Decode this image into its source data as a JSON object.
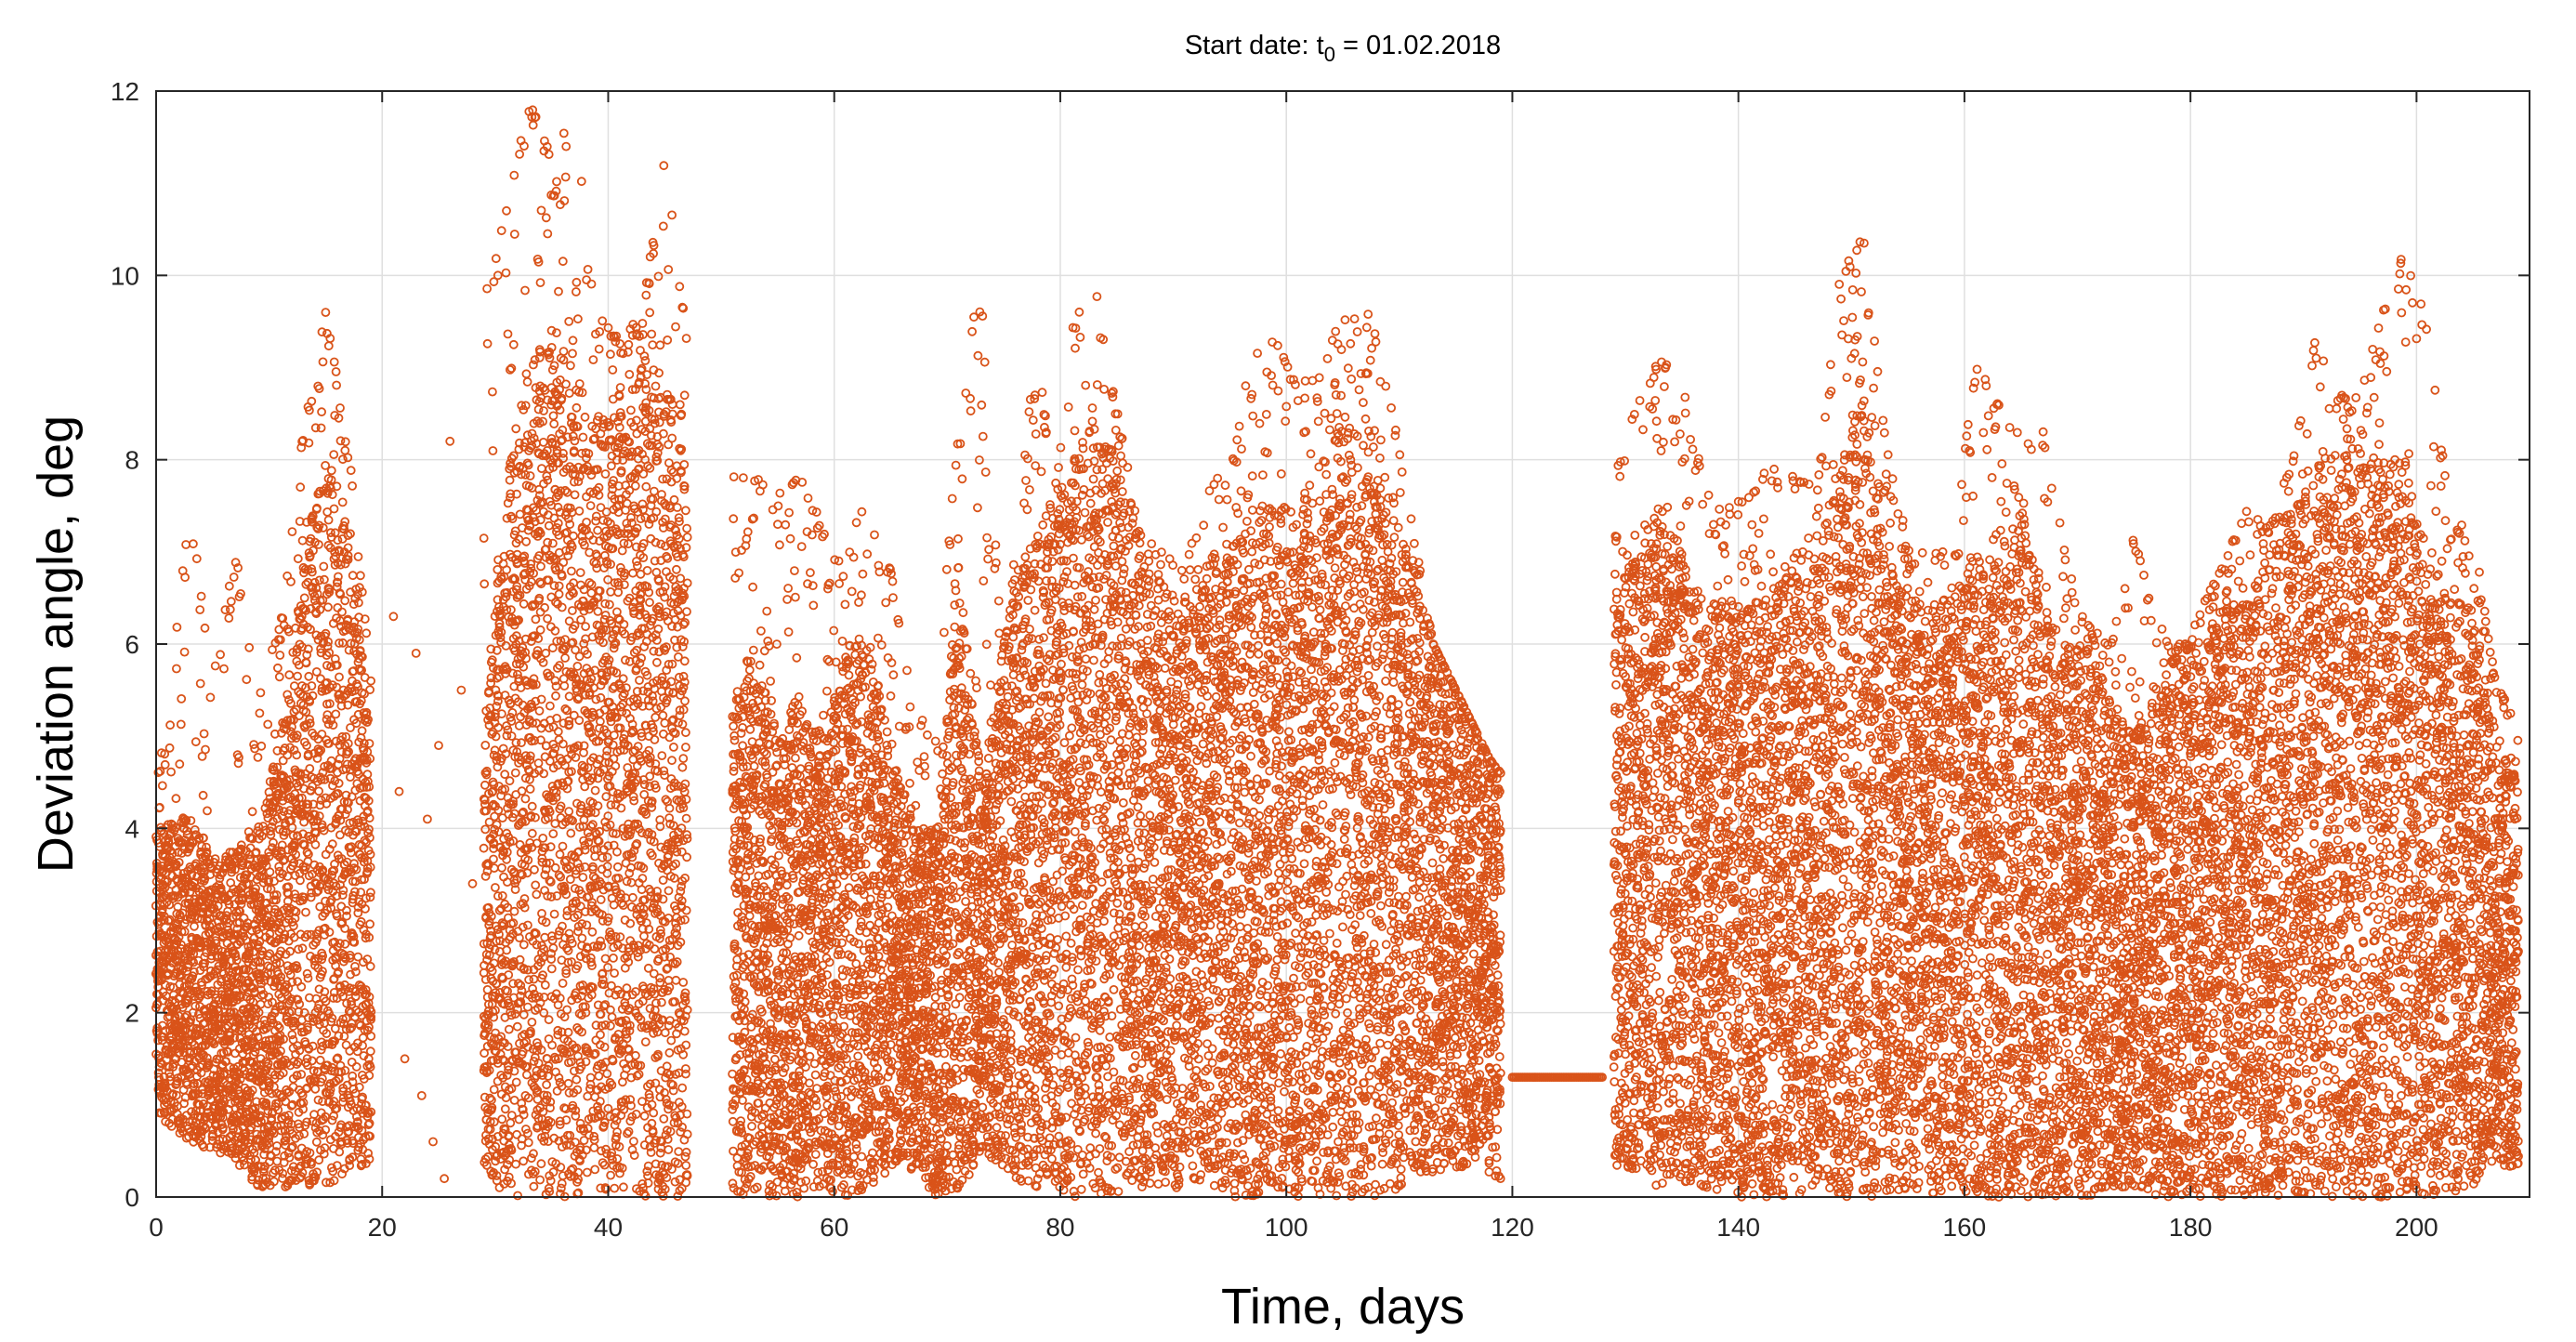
{
  "chart_data": {
    "type": "scatter",
    "title": {
      "prefix": "Start date: t",
      "subscript": "0",
      "suffix": " = 01.02.2018"
    },
    "xlabel": "Time, days",
    "ylabel": "Deviation angle, deg",
    "xlim": [
      0,
      210
    ],
    "ylim": [
      0,
      12
    ],
    "xticks": [
      0,
      20,
      40,
      60,
      80,
      100,
      120,
      140,
      160,
      180,
      200
    ],
    "yticks": [
      0,
      2,
      4,
      6,
      8,
      10,
      12
    ],
    "grid": true,
    "marker": "open-circle",
    "series": [
      {
        "color": "#d95319",
        "envelope": {
          "x": [
            0,
            3,
            5,
            7,
            9,
            11,
            13,
            15,
            17,
            19,
            29,
            31,
            33,
            35,
            37,
            39,
            41,
            43,
            45,
            47,
            51,
            53,
            55,
            57,
            59,
            61,
            63,
            65,
            67,
            69,
            71,
            73,
            75,
            77,
            79,
            81,
            83,
            85,
            87,
            89,
            91,
            93,
            95,
            97,
            99,
            101,
            103,
            105,
            107,
            109,
            111,
            113,
            115,
            117,
            119,
            129,
            131,
            133,
            135,
            137,
            139,
            141,
            143,
            145,
            147,
            149,
            151,
            153,
            155,
            157,
            159,
            161,
            163,
            165,
            167,
            169,
            171,
            173,
            175,
            177,
            179,
            181,
            183,
            185,
            187,
            189,
            191,
            193,
            195,
            197,
            199,
            201,
            203,
            205,
            207,
            209
          ],
          "typical_upper": [
            4.0,
            4.2,
            3.7,
            3.8,
            4.0,
            5.0,
            7.0,
            8.0,
            7.5,
            5.0,
            5.0,
            8.0,
            9.0,
            9.5,
            9.0,
            8.5,
            8.5,
            9.0,
            9.0,
            8.0,
            5.5,
            6.0,
            5.0,
            5.5,
            5.0,
            6.0,
            6.0,
            5.0,
            4.0,
            4.0,
            7.0,
            4.5,
            6.0,
            7.0,
            7.5,
            8.0,
            8.5,
            8.0,
            7.0,
            6.5,
            6.5,
            7.0,
            7.0,
            7.5,
            7.5,
            7.5,
            8.0,
            8.5,
            8.5,
            7.5,
            7.0,
            6.0,
            5.5,
            5.0,
            4.5,
            6.5,
            7.0,
            7.5,
            7.0,
            6.5,
            6.5,
            6.5,
            6.5,
            7.0,
            7.0,
            8.0,
            9.0,
            7.0,
            6.5,
            6.5,
            6.5,
            7.0,
            7.0,
            7.5,
            6.5,
            6.0,
            6.0,
            5.5,
            5.0,
            5.5,
            6.0,
            6.0,
            6.5,
            6.5,
            7.0,
            7.5,
            8.0,
            8.0,
            8.0,
            8.0,
            8.0,
            7.0,
            6.5,
            6.5,
            5.0,
            4.5
          ],
          "max": [
            4.4,
            7.5,
            5.6,
            7.0,
            5.6,
            6.2,
            8.3,
            9.6,
            8.2,
            5.6,
            9.7,
            10.9,
            11.9,
            11.3,
            11.9,
            9.6,
            9.3,
            9.6,
            11.3,
            9.3,
            7.9,
            7.8,
            7.7,
            7.8,
            7.3,
            6.8,
            7.9,
            6.8,
            5.3,
            5.0,
            8.8,
            9.9,
            5.5,
            8.6,
            8.9,
            9.4,
            10.0,
            8.6,
            7.2,
            7.0,
            6.8,
            7.8,
            7.8,
            9.3,
            9.3,
            8.8,
            9.0,
            9.6,
            9.8,
            8.8,
            7.4,
            6.0,
            5.4,
            4.9,
            4.6,
            7.8,
            8.6,
            9.1,
            8.9,
            7.7,
            7.5,
            7.6,
            8.0,
            7.8,
            7.7,
            10.0,
            10.5,
            8.2,
            7.1,
            7.0,
            7.0,
            9.1,
            8.6,
            8.4,
            8.4,
            6.9,
            6.2,
            6.0,
            7.3,
            6.3,
            5.8,
            6.4,
            6.9,
            7.5,
            7.3,
            8.0,
            9.3,
            8.7,
            8.7,
            9.6,
            10.3,
            9.5,
            7.3,
            7.3,
            5.6,
            5.1
          ],
          "min": [
            0.9,
            0.6,
            0.5,
            0.4,
            0.1,
            0.1,
            0.1,
            0.1,
            0.3,
            0.3,
            0.3,
            0.0,
            0.0,
            0.0,
            0.0,
            0.0,
            0.1,
            0.0,
            0.0,
            0.0,
            0.0,
            0.0,
            0.0,
            0.0,
            0.1,
            0.0,
            0.1,
            0.3,
            0.3,
            0.0,
            0.0,
            0.5,
            0.3,
            0.1,
            0.1,
            0.0,
            0.0,
            0.0,
            0.1,
            0.1,
            0.1,
            0.1,
            0.0,
            0.0,
            0.1,
            0.0,
            0.0,
            0.0,
            0.0,
            0.0,
            0.2,
            0.2,
            0.3,
            0.4,
            0.1,
            0.3,
            0.3,
            0.1,
            0.1,
            0.1,
            0.0,
            0.0,
            0.0,
            0.0,
            0.1,
            0.0,
            0.0,
            0.0,
            0.1,
            0.0,
            0.1,
            0.0,
            0.0,
            0.0,
            0.0,
            0.0,
            0.0,
            0.1,
            0.1,
            0.0,
            0.0,
            0.0,
            0.0,
            0.0,
            0.0,
            0.0,
            0.0,
            0.0,
            0.0,
            0.0,
            0.0,
            0.0,
            0.0,
            0.1,
            0.3,
            0.3
          ]
        },
        "constant_segment": {
          "x_start": 120,
          "x_end": 128,
          "y": 1.3
        },
        "sparse_points": {
          "x": [
            21,
            21.5,
            22,
            23,
            23.5,
            24,
            24.5,
            25,
            25.5,
            26,
            27,
            28
          ],
          "y": [
            6.3,
            4.4,
            1.5,
            5.9,
            1.1,
            4.1,
            0.6,
            4.9,
            0.2,
            8.2,
            5.5,
            3.4
          ]
        }
      }
    ]
  }
}
